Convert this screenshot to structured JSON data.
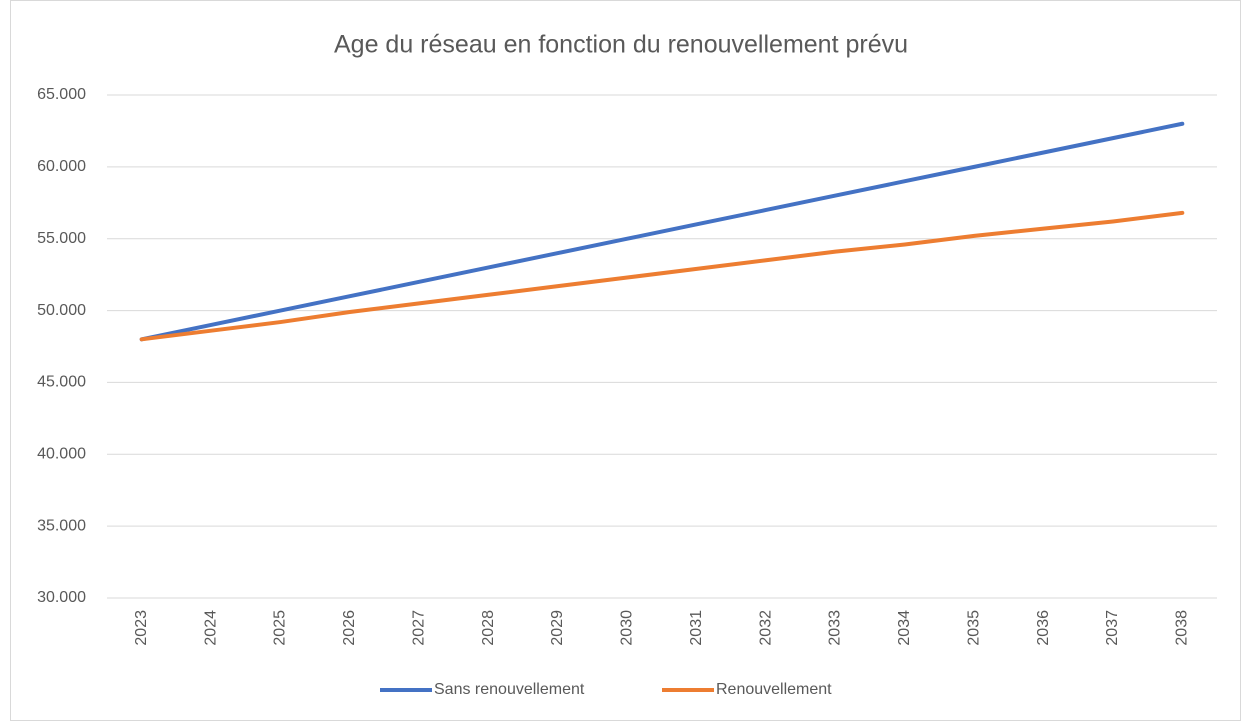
{
  "chart_data": {
    "type": "line",
    "title": "Age du réseau en fonction du renouvellement prévu",
    "categories": [
      "2023",
      "2024",
      "2025",
      "2026",
      "2027",
      "2028",
      "2029",
      "2030",
      "2031",
      "2032",
      "2033",
      "2034",
      "2035",
      "2036",
      "2037",
      "2038"
    ],
    "series": [
      {
        "name": "Sans renouvellement",
        "color": "#4472c4",
        "values": [
          48,
          49,
          50,
          51,
          52,
          53,
          54,
          55,
          56,
          57,
          58,
          59,
          60,
          61,
          62,
          63
        ]
      },
      {
        "name": "Renouvellement",
        "color": "#ed7d31",
        "values": [
          48,
          48.6,
          49.2,
          49.9,
          50.5,
          51.1,
          51.7,
          52.3,
          52.9,
          53.5,
          54.1,
          54.6,
          55.2,
          55.7,
          56.2,
          56.8
        ]
      }
    ],
    "ylim": [
      30,
      65
    ],
    "yticks": [
      {
        "value": 30,
        "label": "30.000"
      },
      {
        "value": 35,
        "label": "35.000"
      },
      {
        "value": 40,
        "label": "40.000"
      },
      {
        "value": 45,
        "label": "45.000"
      },
      {
        "value": 50,
        "label": "50.000"
      },
      {
        "value": 55,
        "label": "55.000"
      },
      {
        "value": 60,
        "label": "60.000"
      },
      {
        "value": 65,
        "label": "65.000"
      }
    ],
    "grid": true,
    "legend": "bottom"
  }
}
